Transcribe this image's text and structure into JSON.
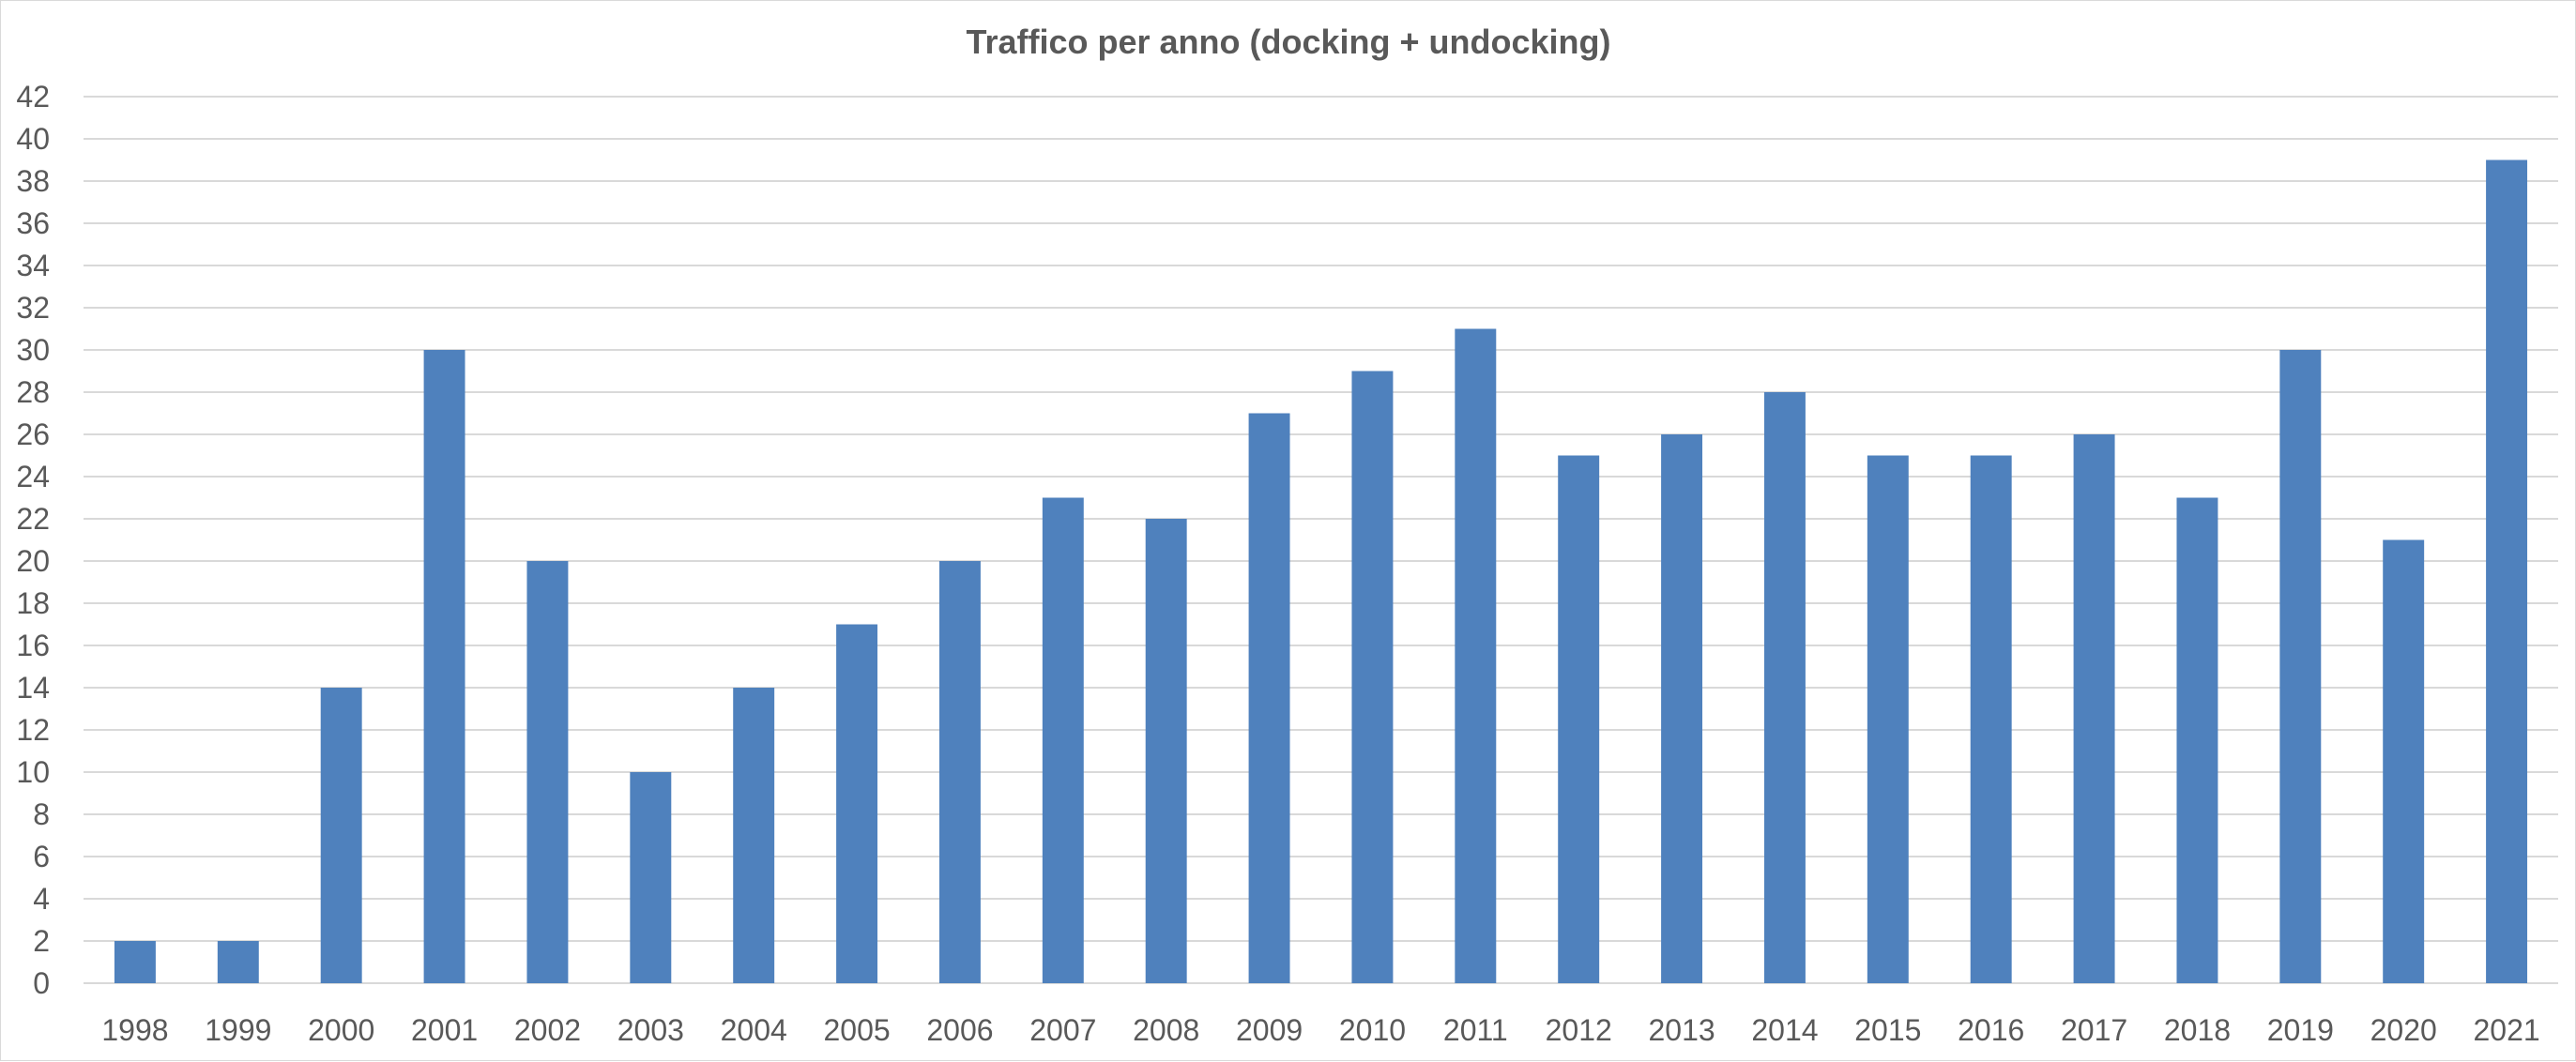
{
  "chart_data": {
    "type": "bar",
    "title": "Traffico per anno (docking + undocking)",
    "xlabel": "",
    "ylabel": "",
    "categories": [
      "1998",
      "1999",
      "2000",
      "2001",
      "2002",
      "2003",
      "2004",
      "2005",
      "2006",
      "2007",
      "2008",
      "2009",
      "2010",
      "2011",
      "2012",
      "2013",
      "2014",
      "2015",
      "2016",
      "2017",
      "2018",
      "2019",
      "2020",
      "2021"
    ],
    "values": [
      2,
      2,
      14,
      30,
      20,
      10,
      14,
      17,
      20,
      23,
      22,
      27,
      29,
      31,
      25,
      26,
      28,
      25,
      25,
      26,
      23,
      30,
      21,
      39
    ],
    "ylim": [
      0,
      42
    ],
    "ytick_step": 2,
    "grid": true,
    "legend": "none",
    "colors": {
      "bar": "#4f81bd",
      "grid": "#d9d9d9",
      "text": "#595959"
    }
  }
}
